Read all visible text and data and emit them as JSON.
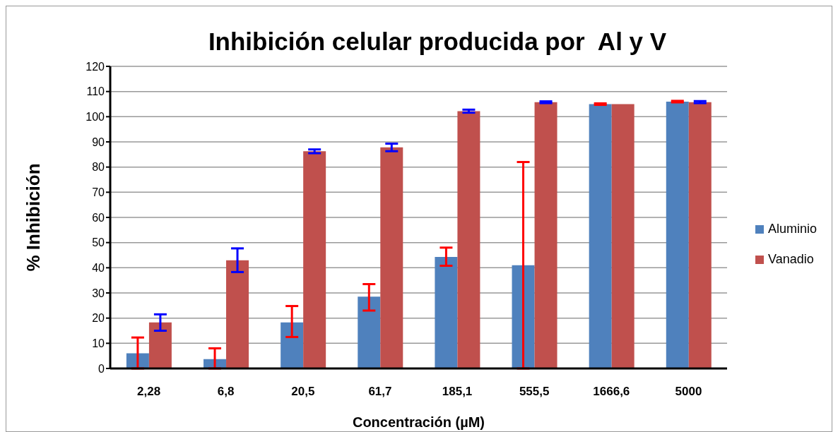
{
  "chart_data": {
    "type": "bar",
    "title": "Inhibición celular producida por  Al y V",
    "xlabel": "Concentración (µM)",
    "ylabel": "% Inhibición",
    "categories": [
      "2,28",
      "6,8",
      "20,5",
      "61,7",
      "185,1",
      "555,5",
      "1666,6",
      "5000"
    ],
    "series": [
      {
        "name": "Aluminio",
        "color": "#4f81bd",
        "values": [
          6,
          3.7,
          18.3,
          28.5,
          44.3,
          41,
          105,
          106
        ],
        "errors": [
          [
            0,
            12.3
          ],
          [
            0,
            8
          ],
          [
            12.5,
            24.8
          ],
          [
            23,
            33.5
          ],
          [
            40.8,
            48
          ],
          [
            0,
            82
          ],
          [
            104.7,
            105.3
          ],
          [
            105.7,
            106.3
          ]
        ]
      },
      {
        "name": "Vanadio",
        "color": "#c0504d",
        "values": [
          18.3,
          43,
          86.3,
          87.8,
          102.2,
          105.8,
          105,
          105.8
        ],
        "errors": [
          [
            15,
            21.5
          ],
          [
            38.3,
            47.7
          ],
          [
            85.5,
            87
          ],
          [
            86.3,
            89.3
          ],
          [
            101.6,
            102.8
          ],
          [
            105.4,
            106.1
          ],
          null,
          [
            105.4,
            106.2
          ]
        ]
      }
    ],
    "ylim": [
      0,
      120
    ],
    "yticks": [
      0,
      10,
      20,
      30,
      40,
      50,
      60,
      70,
      80,
      90,
      100,
      110,
      120
    ],
    "grid": "y",
    "legend": "right"
  }
}
